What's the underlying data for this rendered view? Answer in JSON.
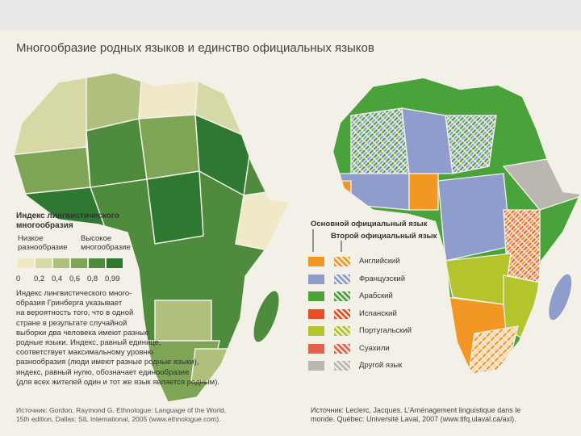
{
  "title": "Многообразие родных языков и единство официальных языков",
  "diversity_legend": {
    "title": [
      "Индекс лингвистического",
      "многообразия"
    ],
    "low_label": [
      "Низкое",
      "разнообразие"
    ],
    "high_label": [
      "Высокое",
      "многообразие"
    ],
    "scale": [
      {
        "label": "0",
        "color": "#efe9c8"
      },
      {
        "label": "0,2",
        "color": "#d6d9a6"
      },
      {
        "label": "0,4",
        "color": "#afc07c"
      },
      {
        "label": "0,6",
        "color": "#7ea456"
      },
      {
        "label": "0,8",
        "color": "#4f8b3c"
      },
      {
        "label": "0,99",
        "color": "#2e7832"
      }
    ]
  },
  "description": [
    "Индекс лингвистического много-",
    "образия Гринберга указывает",
    "на вероятность того, что в одной",
    "стране в результате случайной",
    "выборки два человека имеют разные",
    "родные языки. Индекс, равный единице,",
    "соответствует максимальному уровню",
    "разнообразия (люди имеют разные родные языки),",
    "индекс, равный нулю, обозначает единообразие",
    "(для всех жителей один и тот же язык является родным)."
  ],
  "source_left": [
    "Источник: Gordon, Raymond G. Ethnologue: Language of the World,",
    "15th edition, Dallas: SIL International, 2005 (www.ethnologue.com)."
  ],
  "language_legend": {
    "primary_header": "Основной официальный язык",
    "secondary_header": "Второй официальный язык",
    "items": [
      {
        "label": "Английский",
        "color": "#f29624"
      },
      {
        "label": "Французский",
        "color": "#8f9dcc"
      },
      {
        "label": "Арабский",
        "color": "#4aa23b"
      },
      {
        "label": "Испанский",
        "color": "#e64e25"
      },
      {
        "label": "Португальский",
        "color": "#b3c42c"
      },
      {
        "label": "Суахили",
        "color": "#e5614c"
      },
      {
        "label": "Другой язык",
        "color": "#bab6b0"
      }
    ]
  },
  "source_right": [
    "Источник: Leclerc, Jacques. L'Aménagement linguistique dans le",
    "monde. Québec: Université Laval, 2007 (www.tlfq.ulaval.ca/axl)."
  ]
}
